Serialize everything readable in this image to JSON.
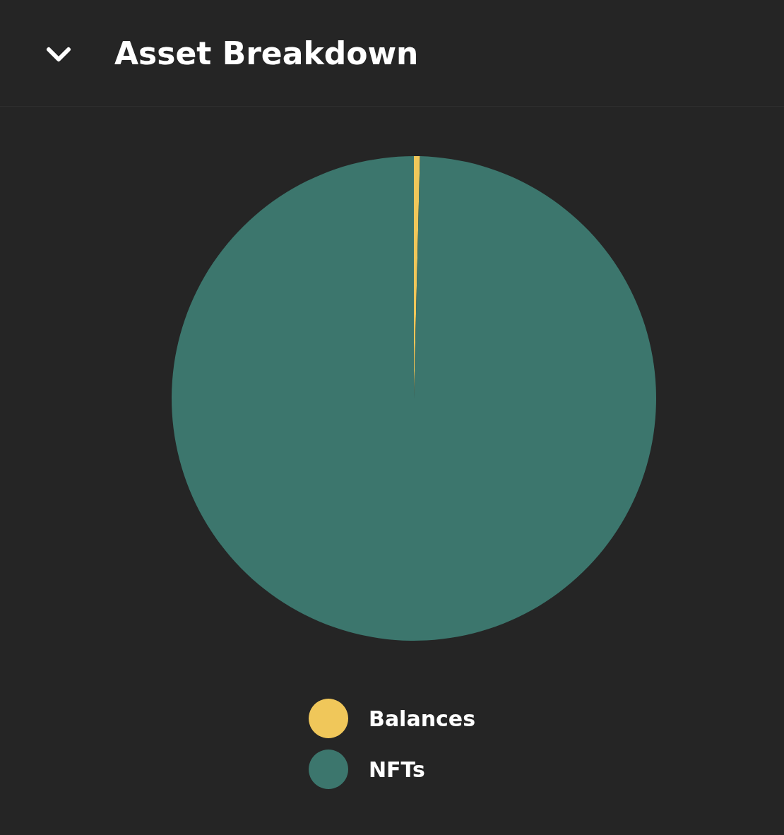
{
  "chart_data": {
    "type": "pie",
    "title": "Asset Breakdown",
    "categories": [
      "Balances",
      "NFTs"
    ],
    "values": [
      0.4,
      99.6
    ],
    "colors": [
      "#f0c75a",
      "#3c766d"
    ],
    "legend": "bottom"
  }
}
